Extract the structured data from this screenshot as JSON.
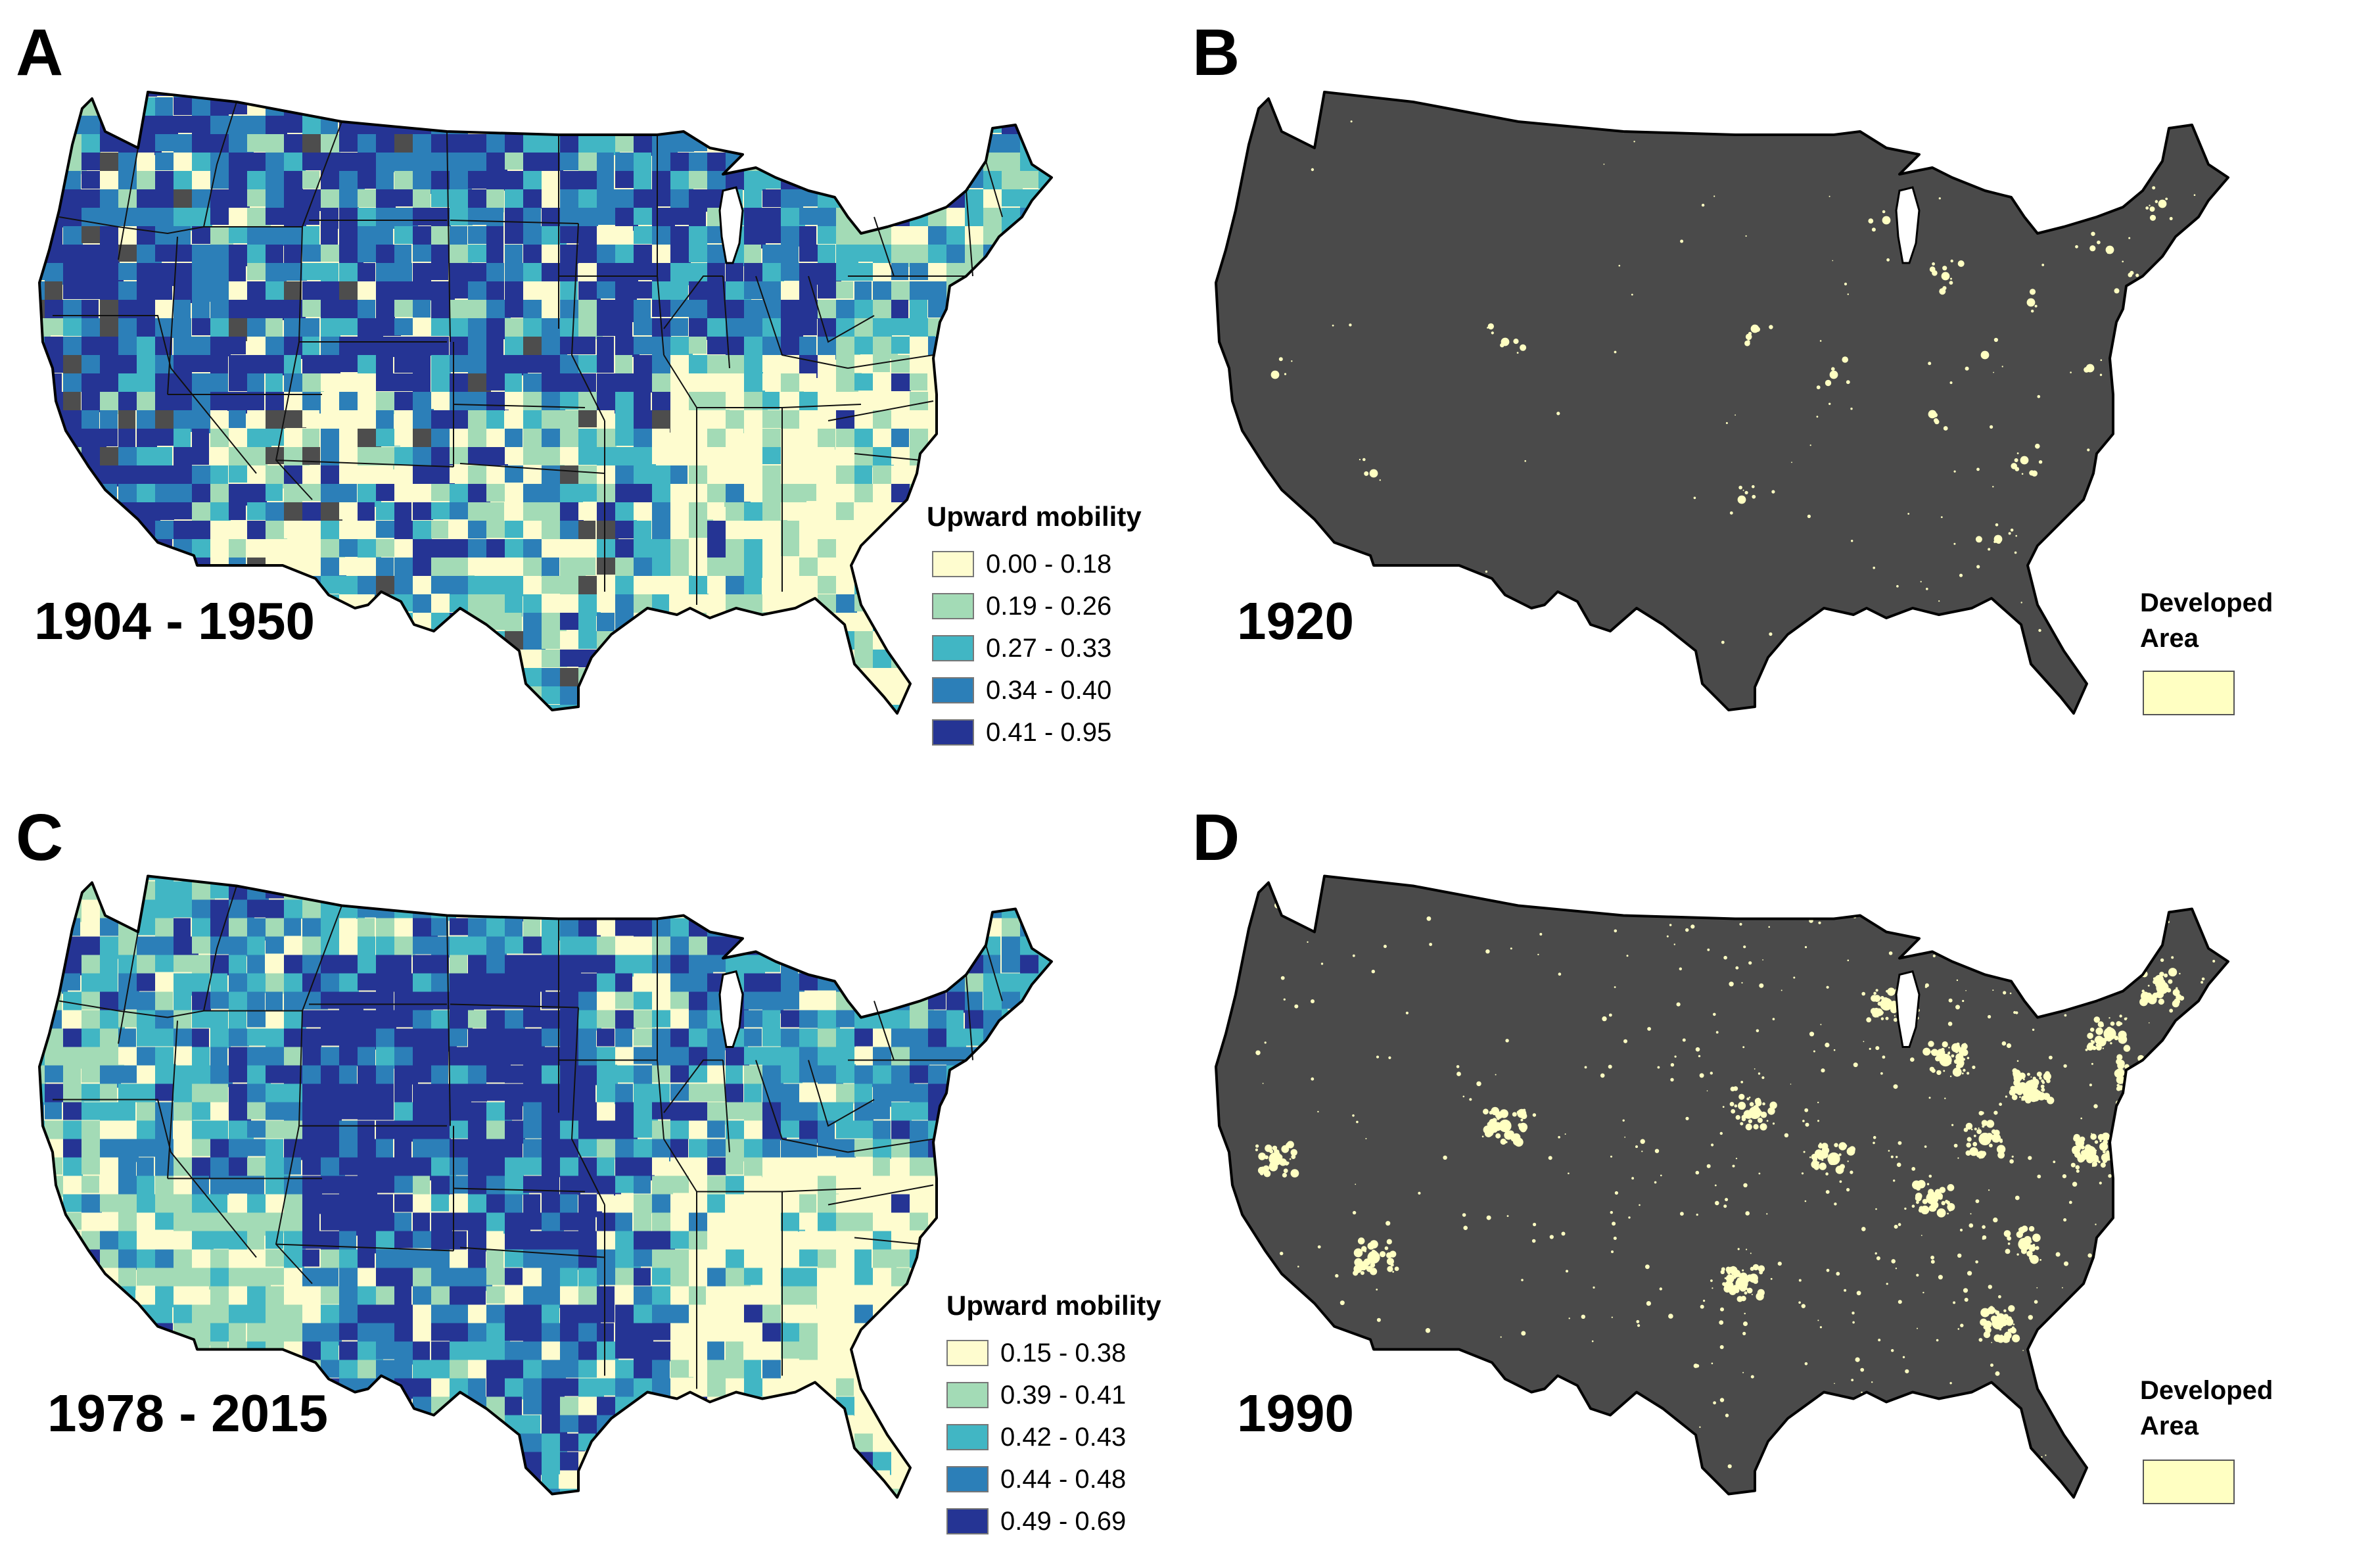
{
  "panels": [
    {
      "id": "A",
      "letter": "A",
      "year_range": "1904 - 1950",
      "type": "choropleth",
      "legend_title": "Upward mobility",
      "legend": [
        {
          "label": "0.00 - 0.18",
          "color": "#fefccf"
        },
        {
          "label": "0.19 - 0.26",
          "color": "#a3dbb6"
        },
        {
          "label": "0.27 - 0.33",
          "color": "#41b6c4"
        },
        {
          "label": "0.34 - 0.40",
          "color": "#2c7fb8"
        },
        {
          "label": "0.41 - 0.95",
          "color": "#253494"
        }
      ],
      "no_data_color": "#4d4d4d"
    },
    {
      "id": "B",
      "letter": "B",
      "year_range": "1920",
      "type": "developed-area",
      "legend_title": "Developed Area",
      "legend_color": "#ffffc2",
      "background_color": "#4a4a4a"
    },
    {
      "id": "C",
      "letter": "C",
      "year_range": "1978 - 2015",
      "type": "choropleth",
      "legend_title": "Upward mobility",
      "legend": [
        {
          "label": "0.15 - 0.38",
          "color": "#fefccf"
        },
        {
          "label": "0.39 - 0.41",
          "color": "#a3dbb6"
        },
        {
          "label": "0.42 - 0.43",
          "color": "#41b6c4"
        },
        {
          "label": "0.44 - 0.48",
          "color": "#2c7fb8"
        },
        {
          "label": "0.49 - 0.69",
          "color": "#253494"
        }
      ],
      "no_data_color": "#4d4d4d"
    },
    {
      "id": "D",
      "letter": "D",
      "year_range": "1990",
      "type": "developed-area",
      "legend_title": "Developed Area",
      "legend_color": "#ffffc2",
      "background_color": "#4a4a4a"
    }
  ]
}
